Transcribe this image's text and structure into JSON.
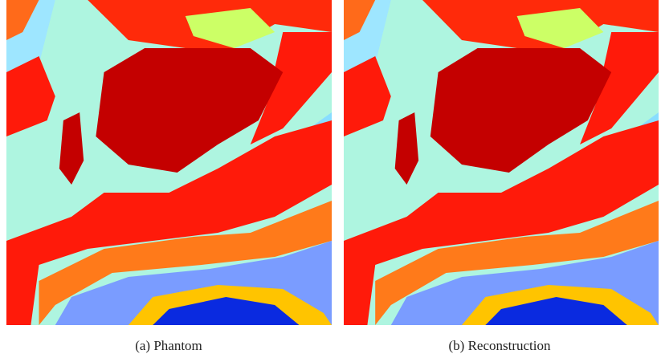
{
  "figure": {
    "panels": [
      {
        "caption": "(a) Phantom"
      },
      {
        "caption": "(b) Reconstruction"
      }
    ]
  }
}
